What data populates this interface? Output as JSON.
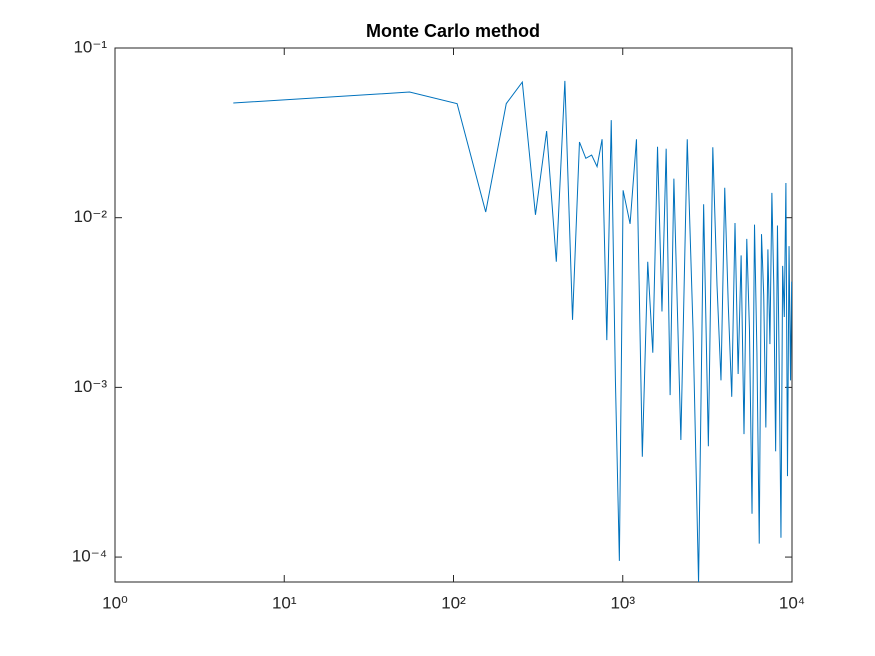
{
  "chart_data": {
    "type": "line",
    "title": "Monte Carlo method",
    "log_x": true,
    "log_y": true,
    "xlim": [
      1,
      10000
    ],
    "ylim": [
      7.13e-05,
      0.1
    ],
    "xticks": [
      {
        "value": 1,
        "label": "10⁰"
      },
      {
        "value": 10,
        "label": "10¹"
      },
      {
        "value": 100,
        "label": "10²"
      },
      {
        "value": 1000,
        "label": "10³"
      },
      {
        "value": 10000,
        "label": "10⁴"
      }
    ],
    "yticks": [
      {
        "value": 0.0001,
        "label": "10⁻⁴"
      },
      {
        "value": 0.001,
        "label": "10⁻³"
      },
      {
        "value": 0.01,
        "label": "10⁻²"
      },
      {
        "value": 0.1,
        "label": "10⁻¹"
      }
    ],
    "x": [
      5,
      55,
      105,
      155,
      205,
      255,
      305,
      355,
      405,
      455,
      505,
      555,
      605,
      655,
      705,
      755,
      805,
      855,
      905,
      955,
      1005,
      1105,
      1205,
      1305,
      1405,
      1505,
      1605,
      1705,
      1805,
      1905,
      2005,
      2205,
      2405,
      2605,
      2805,
      3005,
      3205,
      3405,
      3605,
      3805,
      4005,
      4205,
      4405,
      4605,
      4805,
      5005,
      5205,
      5405,
      5605,
      5805,
      6005,
      6205,
      6405,
      6605,
      6805,
      7005,
      7205,
      7405,
      7605,
      7805,
      8005,
      8205,
      8405,
      8605,
      8805,
      9005,
      9205,
      9405,
      9605,
      9805,
      9955
    ],
    "series": [
      {
        "color": "#0072bd",
        "values": [
          0.0474,
          0.055,
          0.047,
          0.0108,
          0.047,
          0.063,
          0.0104,
          0.0324,
          0.0055,
          0.064,
          0.0025,
          0.0279,
          0.0224,
          0.0234,
          0.02,
          0.029,
          0.0019,
          0.0376,
          0.0011,
          9.5e-05,
          0.0145,
          0.0092,
          0.029,
          0.00039,
          0.0055,
          0.0016,
          0.0262,
          0.0028,
          0.0255,
          0.0009,
          0.017,
          0.00049,
          0.029,
          0.0021,
          7e-05,
          0.012,
          0.00045,
          0.026,
          0.004,
          0.0011,
          0.015,
          0.003,
          0.00088,
          0.0093,
          0.0012,
          0.006,
          0.00053,
          0.0075,
          0.0022,
          0.00018,
          0.0091,
          0.0016,
          0.00012,
          0.008,
          0.0035,
          0.00058,
          0.0065,
          0.0018,
          0.014,
          0.004,
          0.00042,
          0.009,
          0.0013,
          0.00013,
          0.0052,
          0.0026,
          0.016,
          0.0003,
          0.0068,
          0.0011,
          0.0042
        ]
      }
    ]
  }
}
